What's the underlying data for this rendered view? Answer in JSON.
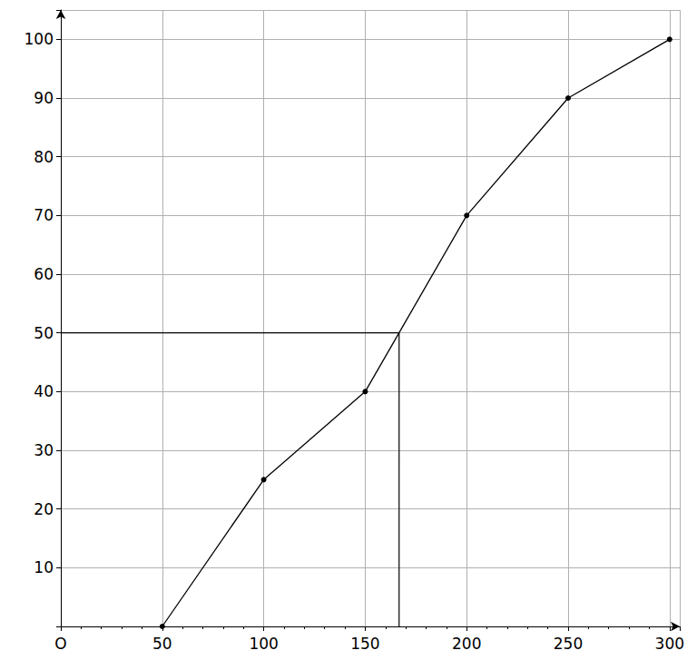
{
  "chart_data": {
    "type": "line",
    "x": [
      50,
      100,
      150,
      200,
      250,
      300
    ],
    "values": [
      0,
      25,
      40,
      70,
      90,
      100
    ],
    "color": "#000000",
    "marker": "circle",
    "median": {
      "x": 166.7,
      "y": 50
    },
    "xlim": [
      0,
      305
    ],
    "xticks": [
      {
        "value": 0,
        "label": "O"
      },
      50,
      100,
      150,
      200,
      250,
      300
    ],
    "ylim": [
      0,
      105
    ],
    "yticks": [
      10,
      20,
      30,
      40,
      50,
      60,
      70,
      80,
      90,
      100
    ],
    "grid": true
  }
}
